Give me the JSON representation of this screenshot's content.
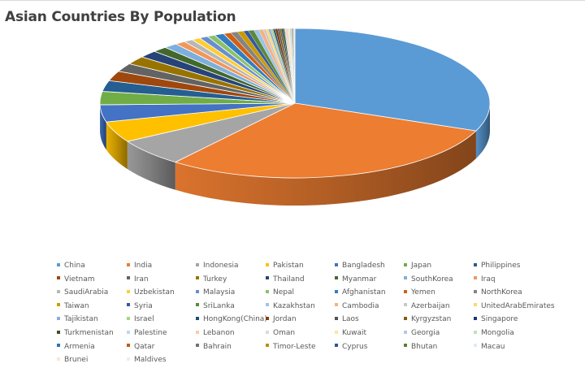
{
  "chart_data": {
    "type": "pie",
    "style": "3d-pie",
    "title": "Asian Countries By Population",
    "legend_position": "bottom",
    "categories": [
      "China",
      "India",
      "Indonesia",
      "Pakistan",
      "Bangladesh",
      "Japan",
      "Philippines",
      "Vietnam",
      "Iran",
      "Turkey",
      "Thailand",
      "Myanmar",
      "SouthKorea",
      "Iraq",
      "SaudiArabia",
      "Uzbekistan",
      "Malaysia",
      "Nepal",
      "Afghanistan",
      "Yemen",
      "NorthKorea",
      "Taiwan",
      "Syria",
      "SriLanka",
      "Kazakhstan",
      "Cambodia",
      "Azerbaijan",
      "UnitedArabEmirates",
      "Tajikistan",
      "Israel",
      "HongKong(China)",
      "Jordan",
      "Laos",
      "Kyrgyzstan",
      "Singapore",
      "Turkmenistan",
      "Palestine",
      "Lebanon",
      "Oman",
      "Kuwait",
      "Georgia",
      "Mongolia",
      "Armenia",
      "Qatar",
      "Bahrain",
      "Timor-Leste",
      "Cyprus",
      "Bhutan",
      "Macau",
      "Brunei",
      "Maldives"
    ],
    "values": [
      1380,
      1310,
      264,
      200,
      165,
      127,
      105,
      95,
      81,
      80,
      69,
      54,
      51,
      38,
      33,
      32,
      32,
      29,
      35,
      28,
      25,
      23,
      18,
      21,
      18,
      16,
      10,
      9,
      9,
      8.5,
      7.4,
      9.5,
      7,
      6,
      5.6,
      5.9,
      5,
      6,
      4.6,
      4.2,
      3.9,
      3.1,
      2.9,
      2.6,
      1.5,
      1.3,
      1.2,
      0.8,
      0.6,
      0.4,
      0.4
    ],
    "value_unit": "millions (approximate, estimated from slice sizes)",
    "colors": [
      "#5b9bd5",
      "#ed7d31",
      "#a5a5a5",
      "#ffc000",
      "#4472c4",
      "#70ad47",
      "#255e91",
      "#9e480e",
      "#636363",
      "#997300",
      "#264478",
      "#43682b",
      "#7cafdd",
      "#f1975a",
      "#b7b7b7",
      "#ffcd33",
      "#698ed0",
      "#8cc168",
      "#327dc2",
      "#d26012",
      "#848484",
      "#cc9a00",
      "#335aa1",
      "#5a8a39",
      "#9dc3e6",
      "#f4b183",
      "#c9c9c9",
      "#ffd966",
      "#8faadc",
      "#a9d18e",
      "#1f4e79",
      "#843c0c",
      "#525252",
      "#7f6000",
      "#203864",
      "#375623",
      "#bdd7ee",
      "#f8cbad",
      "#dbdbdb",
      "#ffe699",
      "#b4c7e7",
      "#c5e0b4",
      "#2e75b6",
      "#c55a11",
      "#767171",
      "#bf9000",
      "#2f5597",
      "#548235",
      "#deebf7",
      "#fbe5d6",
      "#ededed"
    ]
  },
  "legend": {
    "items": [
      {
        "label": "China",
        "color": "#5b9bd5"
      },
      {
        "label": "India",
        "color": "#ed7d31"
      },
      {
        "label": "Indonesia",
        "color": "#a5a5a5"
      },
      {
        "label": "Pakistan",
        "color": "#ffc000"
      },
      {
        "label": "Bangladesh",
        "color": "#4472c4"
      },
      {
        "label": "Japan",
        "color": "#70ad47"
      },
      {
        "label": "Philippines",
        "color": "#255e91"
      },
      {
        "label": "Vietnam",
        "color": "#9e480e"
      },
      {
        "label": "Iran",
        "color": "#636363"
      },
      {
        "label": "Turkey",
        "color": "#997300"
      },
      {
        "label": "Thailand",
        "color": "#264478"
      },
      {
        "label": "Myanmar",
        "color": "#43682b"
      },
      {
        "label": "SouthKorea",
        "color": "#7cafdd"
      },
      {
        "label": "Iraq",
        "color": "#f1975a"
      },
      {
        "label": "SaudiArabia",
        "color": "#b7b7b7"
      },
      {
        "label": "Uzbekistan",
        "color": "#ffcd33"
      },
      {
        "label": "Malaysia",
        "color": "#698ed0"
      },
      {
        "label": "Nepal",
        "color": "#8cc168"
      },
      {
        "label": "Afghanistan",
        "color": "#327dc2"
      },
      {
        "label": "Yemen",
        "color": "#d26012"
      },
      {
        "label": "NorthKorea",
        "color": "#848484"
      },
      {
        "label": "Taiwan",
        "color": "#cc9a00"
      },
      {
        "label": "Syria",
        "color": "#335aa1"
      },
      {
        "label": "SriLanka",
        "color": "#5a8a39"
      },
      {
        "label": "Kazakhstan",
        "color": "#9dc3e6"
      },
      {
        "label": "Cambodia",
        "color": "#f4b183"
      },
      {
        "label": "Azerbaijan",
        "color": "#c9c9c9"
      },
      {
        "label": "UnitedArabEmirates",
        "color": "#ffd966"
      },
      {
        "label": "Tajikistan",
        "color": "#8faadc"
      },
      {
        "label": "Israel",
        "color": "#a9d18e"
      },
      {
        "label": "HongKong(China)",
        "color": "#1f4e79"
      },
      {
        "label": "Jordan",
        "color": "#843c0c"
      },
      {
        "label": "Laos",
        "color": "#525252"
      },
      {
        "label": "Kyrgyzstan",
        "color": "#7f6000"
      },
      {
        "label": "Singapore",
        "color": "#203864"
      },
      {
        "label": "Turkmenistan",
        "color": "#375623"
      },
      {
        "label": "Palestine",
        "color": "#bdd7ee"
      },
      {
        "label": "Lebanon",
        "color": "#f8cbad"
      },
      {
        "label": "Oman",
        "color": "#dbdbdb"
      },
      {
        "label": "Kuwait",
        "color": "#ffe699"
      },
      {
        "label": "Georgia",
        "color": "#b4c7e7"
      },
      {
        "label": "Mongolia",
        "color": "#c5e0b4"
      },
      {
        "label": "Armenia",
        "color": "#2e75b6"
      },
      {
        "label": "Qatar",
        "color": "#c55a11"
      },
      {
        "label": "Bahrain",
        "color": "#767171"
      },
      {
        "label": "Timor-Leste",
        "color": "#bf9000"
      },
      {
        "label": "Cyprus",
        "color": "#2f5597"
      },
      {
        "label": "Bhutan",
        "color": "#548235"
      },
      {
        "label": "Macau",
        "color": "#deebf7"
      },
      {
        "label": "Brunei",
        "color": "#fbe5d6"
      },
      {
        "label": "Maldives",
        "color": "#ededed"
      }
    ]
  }
}
